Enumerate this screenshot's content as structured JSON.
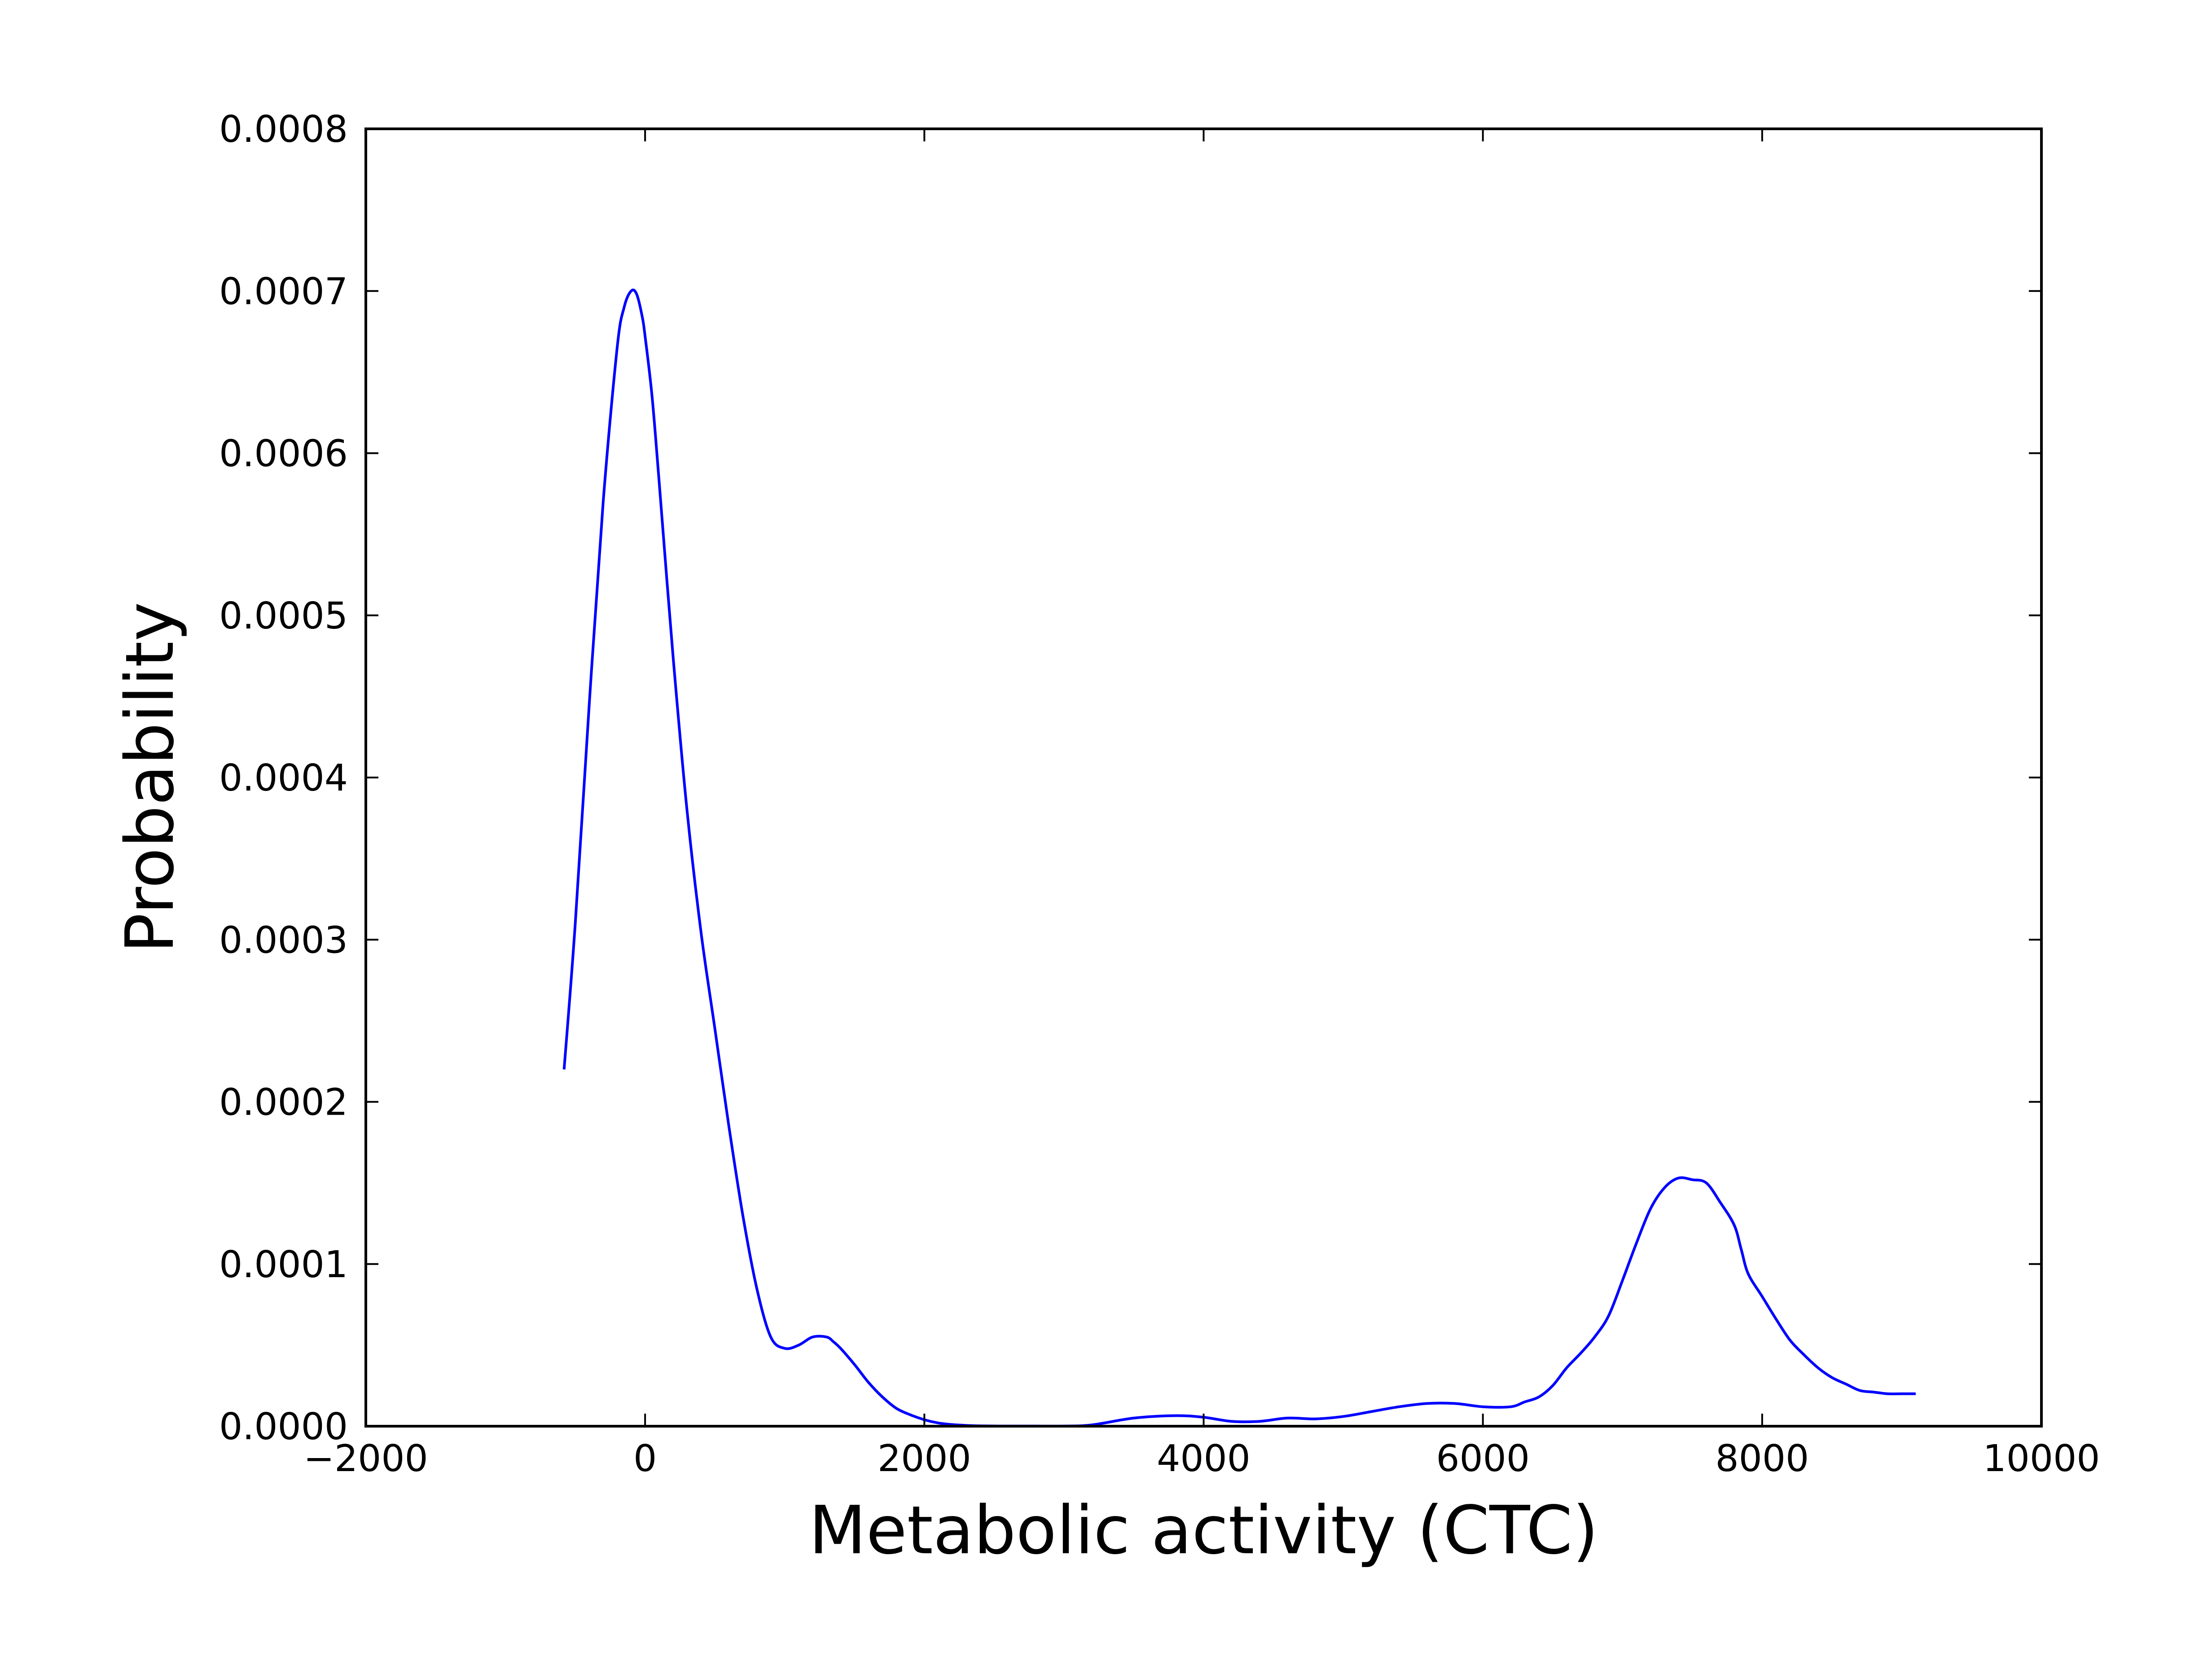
{
  "chart_data": {
    "type": "line",
    "title": "",
    "xlabel": "Metabolic activity (CTC)",
    "ylabel": "Probability",
    "xlim": [
      -2000,
      10000
    ],
    "ylim": [
      0,
      0.0008
    ],
    "x_ticks": [
      {
        "value": -2000,
        "label": "−2000"
      },
      {
        "value": 0,
        "label": "0"
      },
      {
        "value": 2000,
        "label": "2000"
      },
      {
        "value": 4000,
        "label": "4000"
      },
      {
        "value": 6000,
        "label": "6000"
      },
      {
        "value": 8000,
        "label": "8000"
      },
      {
        "value": 10000,
        "label": "10000"
      }
    ],
    "y_ticks": [
      {
        "value": 0,
        "label": "0.0000"
      },
      {
        "value": 0.0001,
        "label": "0.0001"
      },
      {
        "value": 0.0002,
        "label": "0.0002"
      },
      {
        "value": 0.0003,
        "label": "0.0003"
      },
      {
        "value": 0.0004,
        "label": "0.0004"
      },
      {
        "value": 0.0005,
        "label": "0.0005"
      },
      {
        "value": 0.0006,
        "label": "0.0006"
      },
      {
        "value": 0.0007,
        "label": "0.0007"
      },
      {
        "value": 0.0008,
        "label": "0.0008"
      }
    ],
    "grid": false,
    "legend": "none",
    "series": [
      {
        "color": "#0000ff",
        "x": [
          -580,
          -500,
          -400,
          -300,
          -200,
          -150,
          -100,
          -60,
          -20,
          0,
          50,
          100,
          200,
          300,
          400,
          500,
          600,
          700,
          800,
          900,
          1000,
          1100,
          1200,
          1300,
          1350,
          1400,
          1500,
          1600,
          1700,
          1800,
          1900,
          2000,
          2100,
          2200,
          2300,
          2400,
          2600,
          2800,
          3000,
          3200,
          3500,
          3800,
          4000,
          4200,
          4400,
          4600,
          4800,
          5000,
          5200,
          5400,
          5600,
          5800,
          6000,
          6200,
          6300,
          6400,
          6500,
          6600,
          6700,
          6800,
          6900,
          7000,
          7100,
          7200,
          7300,
          7400,
          7500,
          7600,
          7700,
          7800,
          7850,
          7900,
          8000,
          8100,
          8200,
          8300,
          8400,
          8500,
          8600,
          8700,
          8800,
          8900,
          9000,
          9100
        ],
        "y": [
          0.00022,
          0.00031,
          0.000445,
          0.00057,
          0.000665,
          0.00069,
          0.0007,
          0.000698,
          0.000684,
          0.000672,
          0.000635,
          0.000583,
          0.000475,
          0.00038,
          0.000305,
          0.000245,
          0.000185,
          0.00013,
          8.5e-05,
          5.5e-05,
          4.8e-05,
          5e-05,
          5.5e-05,
          5.5e-05,
          5.2e-05,
          4.8e-05,
          3.8e-05,
          2.7e-05,
          1.8e-05,
          1.1e-05,
          7e-06,
          4e-06,
          2e-06,
          1e-06,
          5e-07,
          2e-07,
          1e-07,
          1e-07,
          1e-07,
          8e-07,
          5e-06,
          6.5e-06,
          5.5e-06,
          3e-06,
          3e-06,
          5e-06,
          4.5e-06,
          6e-06,
          9e-06,
          1.2e-05,
          1.4e-05,
          1.4e-05,
          1.2e-05,
          1.2e-05,
          1.5e-05,
          1.8e-05,
          2.5e-05,
          3.6e-05,
          4.5e-05,
          5.5e-05,
          6.8e-05,
          9e-05,
          0.000113,
          0.000134,
          0.000147,
          0.000153,
          0.000152,
          0.00015,
          0.000138,
          0.000124,
          0.000109,
          9.4e-05,
          8e-05,
          6.6e-05,
          5.3e-05,
          4.4e-05,
          3.6e-05,
          3e-05,
          2.6e-05,
          2.2e-05,
          2.1e-05,
          2e-05,
          2e-05,
          2e-05
        ]
      }
    ]
  }
}
